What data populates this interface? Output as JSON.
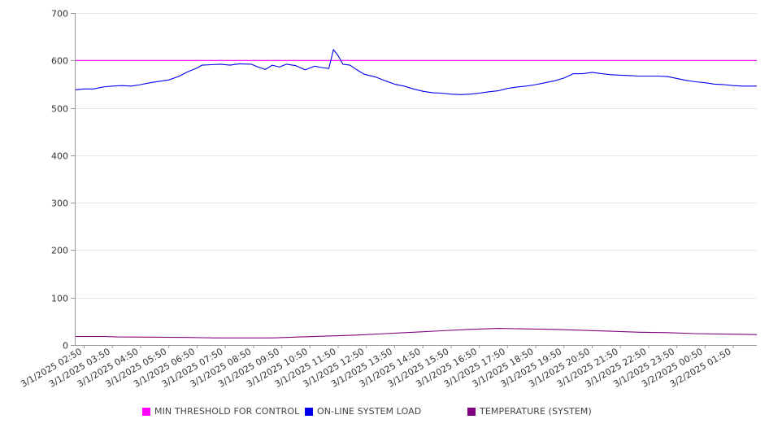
{
  "chart_data": {
    "type": "line",
    "title": "",
    "xlabel": "",
    "ylabel": "",
    "ylim": [
      0,
      700
    ],
    "xlim": [
      "3/1/2025 02:30",
      "3/2/2025 02:40"
    ],
    "y_ticks": [
      0,
      100,
      200,
      300,
      400,
      500,
      600,
      700
    ],
    "x_tick_labels": [
      "3/1/2025 02:50",
      "3/1/2025 03:50",
      "3/1/2025 04:50",
      "3/1/2025 05:50",
      "3/1/2025 06:50",
      "3/1/2025 07:50",
      "3/1/2025 08:50",
      "3/1/2025 09:50",
      "3/1/2025 10:50",
      "3/1/2025 11:50",
      "3/1/2025 12:50",
      "3/1/2025 13:50",
      "3/1/2025 14:50",
      "3/1/2025 15:50",
      "3/1/2025 16:50",
      "3/1/2025 17:50",
      "3/1/2025 18:50",
      "3/1/2025 19:50",
      "3/1/2025 20:50",
      "3/1/2025 21:50",
      "3/1/2025 22:50",
      "3/1/2025 23:50",
      "3/2/2025 00:50",
      "3/2/2025 01:50"
    ],
    "grid": "horizontal",
    "legend_position": "bottom",
    "series": [
      {
        "name": "MIN THRESHOLD FOR CONTROL",
        "color": "#ff00ff",
        "points": [
          [
            "3/1/2025 02:30",
            600
          ],
          [
            "3/2/2025 02:40",
            600
          ]
        ]
      },
      {
        "name": "ON-LINE SYSTEM LOAD",
        "color": "#0000ee",
        "points": [
          [
            "3/1/2025 02:30",
            538
          ],
          [
            "3/1/2025 02:50",
            540
          ],
          [
            "3/1/2025 03:10",
            540
          ],
          [
            "3/1/2025 03:30",
            544
          ],
          [
            "3/1/2025 03:50",
            546
          ],
          [
            "3/1/2025 04:10",
            547
          ],
          [
            "3/1/2025 04:30",
            546
          ],
          [
            "3/1/2025 04:50",
            549
          ],
          [
            "3/1/2025 05:10",
            553
          ],
          [
            "3/1/2025 05:30",
            556
          ],
          [
            "3/1/2025 05:50",
            559
          ],
          [
            "3/1/2025 06:10",
            566
          ],
          [
            "3/1/2025 06:30",
            576
          ],
          [
            "3/1/2025 06:50",
            584
          ],
          [
            "3/1/2025 07:00",
            590
          ],
          [
            "3/1/2025 07:20",
            591
          ],
          [
            "3/1/2025 07:40",
            592
          ],
          [
            "3/1/2025 08:00",
            590
          ],
          [
            "3/1/2025 08:20",
            593
          ],
          [
            "3/1/2025 08:45",
            592
          ],
          [
            "3/1/2025 09:00",
            586
          ],
          [
            "3/1/2025 09:15",
            581
          ],
          [
            "3/1/2025 09:30",
            590
          ],
          [
            "3/1/2025 09:45",
            586
          ],
          [
            "3/1/2025 10:00",
            592
          ],
          [
            "3/1/2025 10:20",
            589
          ],
          [
            "3/1/2025 10:40",
            580
          ],
          [
            "3/1/2025 11:00",
            588
          ],
          [
            "3/1/2025 11:15",
            585
          ],
          [
            "3/1/2025 11:30",
            583
          ],
          [
            "3/1/2025 11:40",
            623
          ],
          [
            "3/1/2025 11:50",
            610
          ],
          [
            "3/1/2025 12:00",
            592
          ],
          [
            "3/1/2025 12:15",
            590
          ],
          [
            "3/1/2025 12:30",
            580
          ],
          [
            "3/1/2025 12:45",
            571
          ],
          [
            "3/1/2025 13:10",
            565
          ],
          [
            "3/1/2025 13:30",
            557
          ],
          [
            "3/1/2025 13:50",
            550
          ],
          [
            "3/1/2025 14:10",
            546
          ],
          [
            "3/1/2025 14:30",
            540
          ],
          [
            "3/1/2025 14:50",
            535
          ],
          [
            "3/1/2025 15:10",
            532
          ],
          [
            "3/1/2025 15:30",
            531
          ],
          [
            "3/1/2025 15:50",
            529
          ],
          [
            "3/1/2025 16:10",
            528
          ],
          [
            "3/1/2025 16:30",
            529
          ],
          [
            "3/1/2025 16:50",
            531
          ],
          [
            "3/1/2025 17:10",
            534
          ],
          [
            "3/1/2025 17:30",
            536
          ],
          [
            "3/1/2025 17:50",
            541
          ],
          [
            "3/1/2025 18:10",
            544
          ],
          [
            "3/1/2025 18:30",
            546
          ],
          [
            "3/1/2025 18:50",
            549
          ],
          [
            "3/1/2025 19:10",
            553
          ],
          [
            "3/1/2025 19:30",
            557
          ],
          [
            "3/1/2025 19:50",
            563
          ],
          [
            "3/1/2025 20:10",
            572
          ],
          [
            "3/1/2025 20:30",
            572
          ],
          [
            "3/1/2025 20:50",
            575
          ],
          [
            "3/1/2025 21:10",
            572
          ],
          [
            "3/1/2025 21:30",
            570
          ],
          [
            "3/1/2025 21:50",
            569
          ],
          [
            "3/1/2025 22:10",
            568
          ],
          [
            "3/1/2025 22:30",
            567
          ],
          [
            "3/1/2025 22:50",
            567
          ],
          [
            "3/1/2025 23:10",
            567
          ],
          [
            "3/1/2025 23:30",
            566
          ],
          [
            "3/1/2025 23:50",
            562
          ],
          [
            "3/2/2025 00:10",
            558
          ],
          [
            "3/2/2025 00:30",
            555
          ],
          [
            "3/2/2025 00:50",
            553
          ],
          [
            "3/2/2025 01:10",
            550
          ],
          [
            "3/2/2025 01:30",
            549
          ],
          [
            "3/2/2025 01:50",
            547
          ],
          [
            "3/2/2025 02:10",
            546
          ],
          [
            "3/2/2025 02:30",
            546
          ],
          [
            "3/2/2025 02:40",
            546
          ]
        ]
      },
      {
        "name": "TEMPERATURE (SYSTEM)",
        "color": "#800080",
        "points": [
          [
            "3/1/2025 02:30",
            18
          ],
          [
            "3/1/2025 03:30",
            18
          ],
          [
            "3/1/2025 04:00",
            17
          ],
          [
            "3/1/2025 06:30",
            16
          ],
          [
            "3/1/2025 07:30",
            15
          ],
          [
            "3/1/2025 09:30",
            15
          ],
          [
            "3/1/2025 10:30",
            17
          ],
          [
            "3/1/2025 11:30",
            19
          ],
          [
            "3/1/2025 12:30",
            21
          ],
          [
            "3/1/2025 13:30",
            24
          ],
          [
            "3/1/2025 14:30",
            27
          ],
          [
            "3/1/2025 15:30",
            30
          ],
          [
            "3/1/2025 16:30",
            33
          ],
          [
            "3/1/2025 17:30",
            35
          ],
          [
            "3/1/2025 18:30",
            34
          ],
          [
            "3/1/2025 19:30",
            33
          ],
          [
            "3/1/2025 20:30",
            31
          ],
          [
            "3/1/2025 21:30",
            29
          ],
          [
            "3/1/2025 22:30",
            27
          ],
          [
            "3/1/2025 23:30",
            26
          ],
          [
            "3/2/2025 00:30",
            24
          ],
          [
            "3/2/2025 01:30",
            23
          ],
          [
            "3/2/2025 02:40",
            22
          ]
        ]
      }
    ]
  }
}
